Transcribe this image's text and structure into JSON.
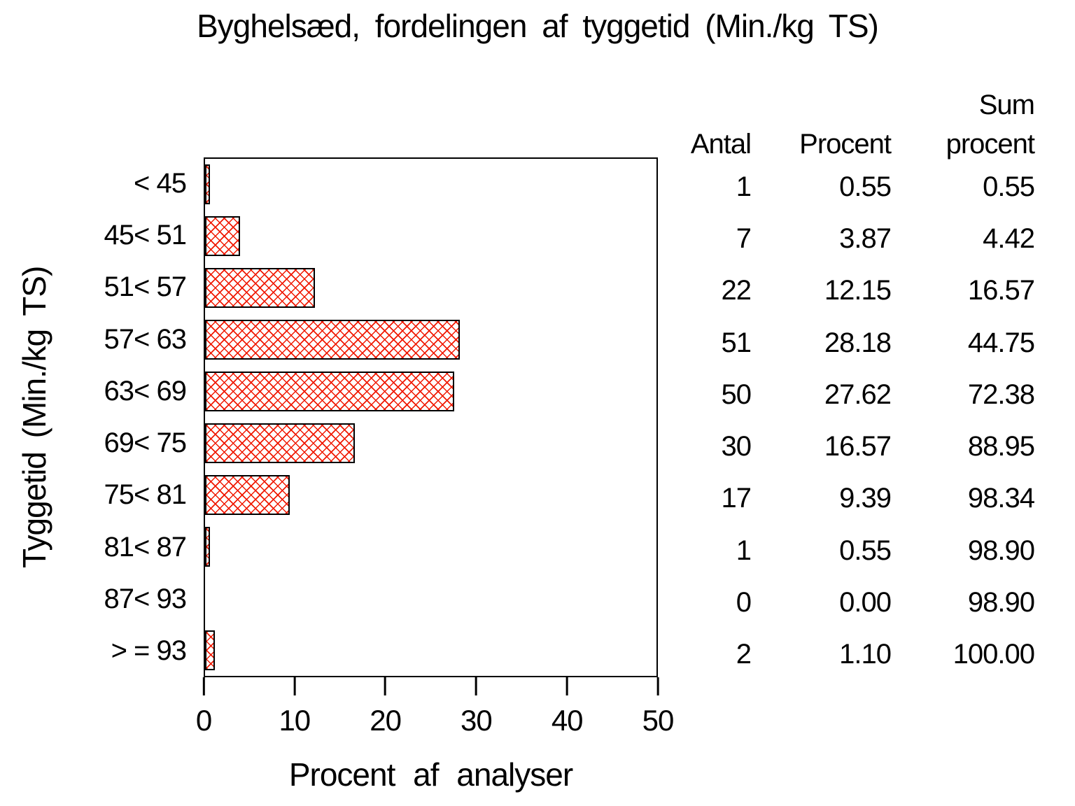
{
  "chart_data": {
    "type": "bar",
    "orientation": "horizontal",
    "title": "Byghelsæd, fordelingen af tyggetid (Min./kg TS)",
    "xlabel": "Procent af analyser",
    "ylabel": "Tyggetid (Min./kg TS)",
    "categories": [
      "< 45",
      "45< 51",
      "51< 57",
      "57< 63",
      "63< 69",
      "69< 75",
      "75< 81",
      "81< 87",
      "87< 93",
      "> = 93"
    ],
    "series": [
      {
        "name": "Procent af analyser",
        "values": [
          0.55,
          3.87,
          12.15,
          28.18,
          27.62,
          16.57,
          9.39,
          0.55,
          0.0,
          1.1
        ]
      }
    ],
    "xlim": [
      0,
      50
    ],
    "xticks": [
      0,
      10,
      20,
      30,
      40,
      50
    ],
    "xtick_labels": [
      "0",
      "10",
      "20",
      "30",
      "40",
      "50"
    ],
    "grid": false,
    "legend": "none",
    "bar_fill": "red-crosshatch",
    "bar_color": "#f01800",
    "bar_border_color": "#000000",
    "table": {
      "header": {
        "antal": "Antal",
        "procent": "Procent",
        "sum_line1": "Sum",
        "sum_line2": "procent"
      },
      "rows": [
        [
          "1",
          "0.55",
          "0.55"
        ],
        [
          "7",
          "3.87",
          "4.42"
        ],
        [
          "22",
          "12.15",
          "16.57"
        ],
        [
          "51",
          "28.18",
          "44.75"
        ],
        [
          "50",
          "27.62",
          "72.38"
        ],
        [
          "30",
          "16.57",
          "88.95"
        ],
        [
          "17",
          "9.39",
          "98.34"
        ],
        [
          "1",
          "0.55",
          "98.90"
        ],
        [
          "0",
          "0.00",
          "98.90"
        ],
        [
          "2",
          "1.10",
          "100.00"
        ]
      ]
    }
  }
}
